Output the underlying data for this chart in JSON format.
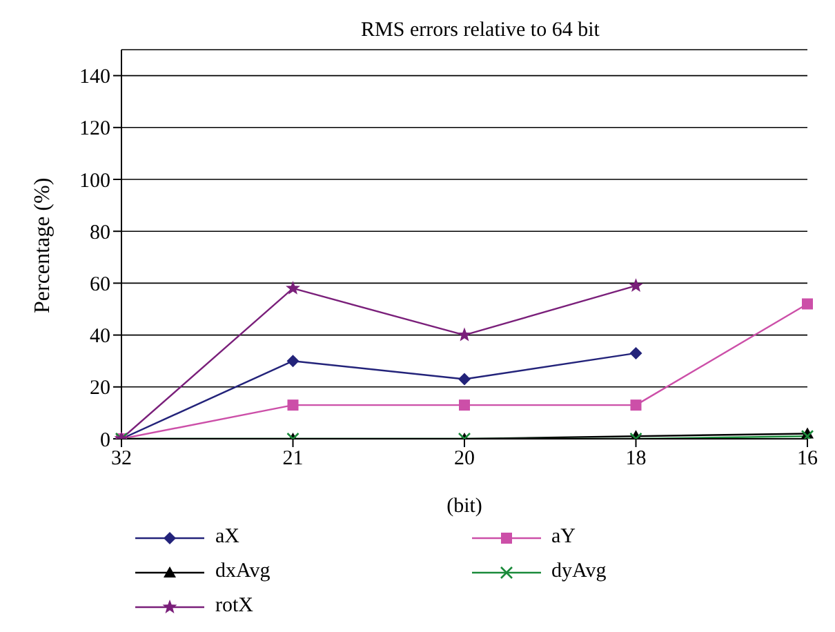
{
  "chart_data": {
    "type": "line",
    "title": "RMS errors relative to 64 bit",
    "xlabel": "(bit)",
    "ylabel": "Percentage (%)",
    "categories": [
      "32",
      "21",
      "20",
      "18",
      "16"
    ],
    "series": [
      {
        "name": "aX",
        "color": "#23237a",
        "marker": "diamond",
        "values": [
          0,
          30,
          23,
          33,
          null
        ]
      },
      {
        "name": "aY",
        "color": "#cc4fa8",
        "marker": "square",
        "values": [
          0,
          13,
          13,
          13,
          52
        ]
      },
      {
        "name": "dxAvg",
        "color": "#000000",
        "marker": "triangle",
        "values": [
          0,
          0,
          0,
          1,
          2
        ]
      },
      {
        "name": "dyAvg",
        "color": "#1a8a3a",
        "marker": "cross",
        "values": [
          0,
          0,
          0,
          0,
          1
        ]
      },
      {
        "name": "rotX",
        "color": "#7a1f7a",
        "marker": "star",
        "values": [
          0,
          58,
          40,
          59,
          null
        ]
      }
    ],
    "ylim": [
      0,
      150
    ],
    "yticks": [
      0,
      20,
      40,
      60,
      80,
      100,
      120,
      140
    ],
    "grid": "y",
    "legend": "bottom"
  }
}
